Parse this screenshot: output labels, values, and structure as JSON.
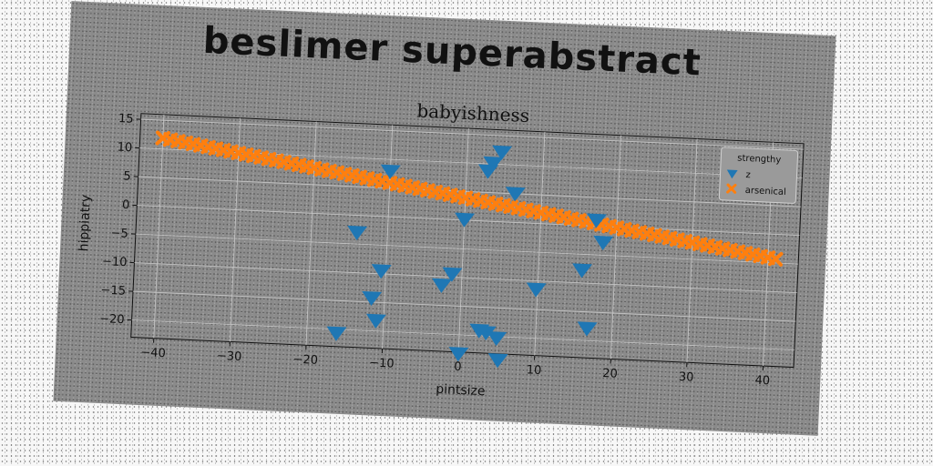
{
  "chart_data": {
    "type": "scatter",
    "suptitle": "beslimer superabstract",
    "title": "babyishness",
    "xlabel": "pintsize",
    "ylabel": "hippiatry",
    "xlim": [
      -43,
      44
    ],
    "ylim": [
      -23,
      16
    ],
    "xticks": [
      -40,
      -30,
      -20,
      -10,
      0,
      10,
      20,
      30,
      40
    ],
    "yticks": [
      -20,
      -15,
      -10,
      -5,
      0,
      5,
      10,
      15
    ],
    "grid": true,
    "legend": {
      "title": "strengthy",
      "placement": "top-right"
    },
    "colors": {
      "z": "#1f77b4",
      "arsenical": "#ff7f0e"
    },
    "series": [
      {
        "name": "z",
        "marker": "triangle-down",
        "points": [
          [
            4.5,
            12.2
          ],
          [
            3.4,
            10.2
          ],
          [
            2.8,
            8.8
          ],
          [
            -10,
            8
          ],
          [
            6.5,
            5.1
          ],
          [
            0.0,
            0.2
          ],
          [
            17.3,
            1.1
          ],
          [
            18.3,
            -2.7
          ],
          [
            -14,
            -2.9
          ],
          [
            15.7,
            -7.7
          ],
          [
            -10.6,
            -9.4
          ],
          [
            -1.3,
            -9.4
          ],
          [
            -2.6,
            -11.4
          ],
          [
            9.8,
            -11.4
          ],
          [
            -11.7,
            -14.2
          ],
          [
            -11,
            -18.1
          ],
          [
            16.7,
            -17.8
          ],
          [
            2.6,
            -19.0
          ],
          [
            3.5,
            -19.3
          ],
          [
            4.9,
            -20.2
          ],
          [
            -16.1,
            -20.6
          ],
          [
            0.0,
            -23.2
          ],
          [
            5.2,
            -24.0
          ]
        ]
      },
      {
        "name": "arsenical",
        "marker": "x",
        "x_start": -40,
        "x_end": 41,
        "x_step": 1,
        "slope": -0.2,
        "intercept": 3.9
      }
    ]
  }
}
